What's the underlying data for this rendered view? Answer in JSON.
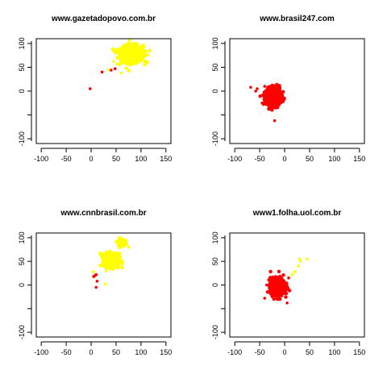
{
  "chart_data": [
    {
      "type": "scatter",
      "title": "www.gazetadopovo.com.br",
      "xlabel": "",
      "ylabel": "",
      "xlim": [
        -110,
        160
      ],
      "ylim": [
        -110,
        110
      ],
      "xticks": [
        -100,
        -50,
        0,
        50,
        100,
        150
      ],
      "yticks": [
        -100,
        0,
        50,
        100
      ],
      "grid": false,
      "clusters": [
        {
          "color": "#ffff00",
          "center": [
            82,
            78
          ],
          "spread": [
            14,
            11
          ],
          "count": 650
        },
        {
          "color": "#ffff00",
          "center": [
            65,
            82
          ],
          "spread": [
            8,
            8
          ],
          "count": 40
        }
      ],
      "points": [
        {
          "color": "#ff0000",
          "x": -2,
          "y": 5
        },
        {
          "color": "#ff0000",
          "x": 22,
          "y": 40
        },
        {
          "color": "#ff0000",
          "x": 40,
          "y": 44
        },
        {
          "color": "#ff0000",
          "x": 48,
          "y": 47
        },
        {
          "color": "#ffff00",
          "x": 35,
          "y": 45
        },
        {
          "color": "#ffff00",
          "x": 52,
          "y": 57
        },
        {
          "color": "#ffff00",
          "x": 60,
          "y": 38
        },
        {
          "color": "#ffff00",
          "x": 70,
          "y": 120
        },
        {
          "color": "#ffff00",
          "x": 108,
          "y": 62
        },
        {
          "color": "#ffff00",
          "x": 45,
          "y": 62
        }
      ]
    },
    {
      "type": "scatter",
      "title": "www.brasil247.com",
      "xlabel": "",
      "ylabel": "",
      "xlim": [
        -110,
        160
      ],
      "ylim": [
        -110,
        110
      ],
      "xticks": [
        -100,
        -50,
        0,
        50,
        100,
        150
      ],
      "yticks": [
        -100,
        0,
        50,
        100
      ],
      "grid": false,
      "clusters": [
        {
          "color": "#ff0000",
          "center": [
            -22,
            -12
          ],
          "spread": [
            9,
            11
          ],
          "count": 650
        }
      ],
      "points": [
        {
          "color": "#ff0000",
          "x": -68,
          "y": 8
        },
        {
          "color": "#ff0000",
          "x": -58,
          "y": 0
        },
        {
          "color": "#ff0000",
          "x": -55,
          "y": 5
        },
        {
          "color": "#ff0000",
          "x": -20,
          "y": -62
        },
        {
          "color": "#ff0000",
          "x": -45,
          "y": -25
        },
        {
          "color": "#ff0000",
          "x": -10,
          "y": 12
        },
        {
          "color": "#ff0000",
          "x": -40,
          "y": 10
        }
      ]
    },
    {
      "type": "scatter",
      "title": "www.cnnbrasil.com.br",
      "xlabel": "",
      "ylabel": "",
      "xlim": [
        -110,
        160
      ],
      "ylim": [
        -110,
        110
      ],
      "xticks": [
        -100,
        -50,
        0,
        50,
        100,
        150
      ],
      "yticks": [
        -100,
        0,
        50,
        100
      ],
      "grid": false,
      "clusters": [
        {
          "color": "#ffff00",
          "center": [
            42,
            52
          ],
          "spread": [
            9,
            9
          ],
          "count": 500
        },
        {
          "color": "#ffff00",
          "center": [
            60,
            90
          ],
          "spread": [
            5,
            5
          ],
          "count": 60
        }
      ],
      "points": [
        {
          "color": "#ff0000",
          "x": 5,
          "y": 18
        },
        {
          "color": "#ff0000",
          "x": 8,
          "y": 20
        },
        {
          "color": "#ff0000",
          "x": 10,
          "y": 22
        },
        {
          "color": "#ff0000",
          "x": 12,
          "y": 8
        },
        {
          "color": "#ff0000",
          "x": 10,
          "y": -5
        },
        {
          "color": "#ffff00",
          "x": 57,
          "y": 112
        },
        {
          "color": "#ffff00",
          "x": 75,
          "y": 80
        },
        {
          "color": "#ffff00",
          "x": 28,
          "y": 2
        },
        {
          "color": "#ffff00",
          "x": 30,
          "y": 30
        },
        {
          "color": "#ffff00",
          "x": 5,
          "y": 28
        }
      ]
    },
    {
      "type": "scatter",
      "title": "www1.folha.uol.com.br",
      "xlabel": "",
      "ylabel": "",
      "xlim": [
        -110,
        160
      ],
      "ylim": [
        -110,
        110
      ],
      "xticks": [
        -100,
        -50,
        0,
        50,
        100,
        150
      ],
      "yticks": [
        -100,
        0,
        50,
        100
      ],
      "grid": false,
      "clusters": [
        {
          "color": "#ff0000",
          "center": [
            -14,
            -3
          ],
          "spread": [
            9,
            11
          ],
          "count": 650
        }
      ],
      "points": [
        {
          "color": "#ffff00",
          "x": 15,
          "y": 22
        },
        {
          "color": "#ffff00",
          "x": 20,
          "y": 28
        },
        {
          "color": "#ffff00",
          "x": 28,
          "y": 40
        },
        {
          "color": "#ffff00",
          "x": 32,
          "y": 50
        },
        {
          "color": "#ffff00",
          "x": 45,
          "y": 55
        },
        {
          "color": "#ffff00",
          "x": 30,
          "y": 55
        },
        {
          "color": "#ff0000",
          "x": -40,
          "y": -28
        },
        {
          "color": "#ff0000",
          "x": -36,
          "y": 0
        },
        {
          "color": "#ff0000",
          "x": 5,
          "y": -38
        },
        {
          "color": "#ff0000",
          "x": 8,
          "y": 15
        }
      ]
    }
  ]
}
